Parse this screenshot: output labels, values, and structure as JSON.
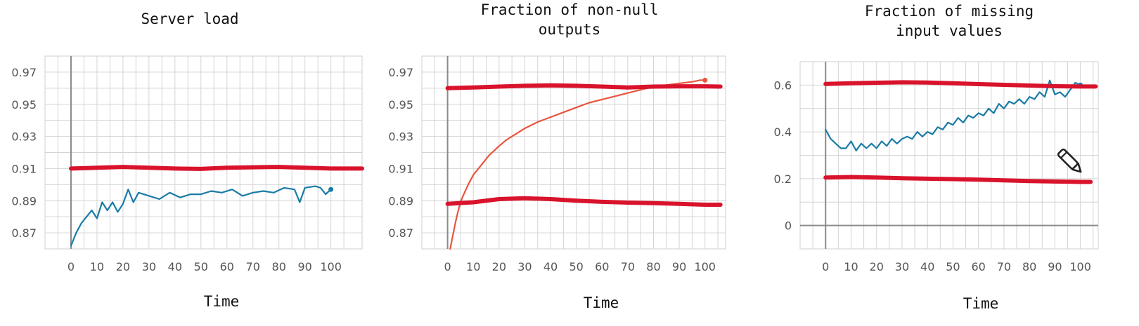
{
  "chart_data": [
    {
      "type": "line",
      "title_lines": [
        "Server load"
      ],
      "xlabel": "Time",
      "ylabel": "",
      "xlim": [
        -10,
        112
      ],
      "ylim": [
        0.86,
        0.98
      ],
      "xticks": [
        0,
        10,
        20,
        30,
        40,
        50,
        60,
        70,
        80,
        90,
        100
      ],
      "yticks": [
        0.87,
        0.89,
        0.91,
        0.93,
        0.95,
        0.97
      ],
      "ytick_labels": [
        "0.87",
        "0.89",
        "0.91",
        "0.93",
        "0.95",
        "0.97"
      ],
      "zero_line": false,
      "series": [
        {
          "color": "#1a7ba6",
          "style": "thin",
          "x": [
            0,
            2,
            4,
            6,
            8,
            10,
            12,
            14,
            16,
            18,
            20,
            22,
            24,
            26,
            28,
            30,
            34,
            38,
            42,
            46,
            50,
            54,
            58,
            62,
            66,
            70,
            74,
            78,
            82,
            86,
            88,
            90,
            94,
            96,
            98,
            100
          ],
          "y": [
            0.862,
            0.87,
            0.876,
            0.88,
            0.884,
            0.879,
            0.889,
            0.884,
            0.889,
            0.883,
            0.888,
            0.897,
            0.889,
            0.895,
            0.894,
            0.893,
            0.891,
            0.895,
            0.892,
            0.894,
            0.894,
            0.896,
            0.895,
            0.897,
            0.893,
            0.895,
            0.896,
            0.895,
            0.898,
            0.897,
            0.889,
            0.898,
            0.899,
            0.898,
            0.894,
            0.897
          ]
        },
        {
          "color": "#d9132c",
          "style": "thick",
          "x": [
            0,
            10,
            20,
            30,
            40,
            50,
            60,
            70,
            80,
            90,
            100,
            112
          ],
          "y": [
            0.91,
            0.9105,
            0.911,
            0.9105,
            0.91,
            0.9098,
            0.9105,
            0.9108,
            0.911,
            0.9105,
            0.91,
            0.91
          ]
        }
      ]
    },
    {
      "type": "line",
      "title_lines": [
        "Fraction of non-null",
        "outputs"
      ],
      "xlabel": "Time",
      "ylabel": "",
      "xlim": [
        -10,
        108
      ],
      "ylim": [
        0.86,
        0.98
      ],
      "xticks": [
        0,
        10,
        20,
        30,
        40,
        50,
        60,
        70,
        80,
        90,
        100
      ],
      "yticks": [
        0.87,
        0.89,
        0.91,
        0.93,
        0.95,
        0.97
      ],
      "ytick_labels": [
        "0.87",
        "0.89",
        "0.91",
        "0.93",
        "0.95",
        "0.97"
      ],
      "zero_line": false,
      "series": [
        {
          "color": "#e8553e",
          "style": "thin",
          "x": [
            1,
            2,
            3,
            4,
            5,
            6,
            8,
            10,
            12,
            14,
            16,
            18,
            20,
            23,
            26,
            30,
            35,
            40,
            45,
            50,
            55,
            60,
            65,
            70,
            75,
            80,
            85,
            90,
            95,
            98,
            100
          ],
          "y": [
            0.86,
            0.868,
            0.876,
            0.883,
            0.889,
            0.893,
            0.9,
            0.906,
            0.91,
            0.914,
            0.918,
            0.921,
            0.924,
            0.928,
            0.931,
            0.935,
            0.939,
            0.942,
            0.945,
            0.948,
            0.951,
            0.953,
            0.955,
            0.957,
            0.959,
            0.961,
            0.962,
            0.963,
            0.964,
            0.965,
            0.965
          ]
        },
        {
          "color": "#d9132c",
          "style": "thick",
          "x": [
            0,
            10,
            20,
            30,
            40,
            50,
            60,
            70,
            80,
            90,
            100,
            106
          ],
          "y": [
            0.96,
            0.9605,
            0.961,
            0.9615,
            0.9618,
            0.9615,
            0.961,
            0.9605,
            0.961,
            0.9612,
            0.9612,
            0.961
          ]
        },
        {
          "color": "#d9132c",
          "style": "thick",
          "x": [
            0,
            10,
            20,
            30,
            40,
            50,
            60,
            70,
            80,
            90,
            100,
            106
          ],
          "y": [
            0.888,
            0.889,
            0.891,
            0.8915,
            0.891,
            0.89,
            0.8893,
            0.8888,
            0.8885,
            0.888,
            0.8875,
            0.8875
          ]
        }
      ]
    },
    {
      "type": "line",
      "title_lines": [
        "Fraction of missing",
        "input values"
      ],
      "xlabel": "Time",
      "ylabel": "",
      "xlim": [
        -10,
        107
      ],
      "ylim": [
        -0.1,
        0.7
      ],
      "xticks": [
        0,
        10,
        20,
        30,
        40,
        50,
        60,
        70,
        80,
        90,
        100
      ],
      "yticks": [
        0,
        0.2,
        0.4,
        0.6
      ],
      "ytick_labels": [
        "0",
        "0.2",
        "0.4",
        "0.6"
      ],
      "zero_line": true,
      "series": [
        {
          "color": "#1a7ba6",
          "style": "thin",
          "x": [
            0,
            2,
            4,
            6,
            8,
            10,
            12,
            14,
            16,
            18,
            20,
            22,
            24,
            26,
            28,
            30,
            32,
            34,
            36,
            38,
            40,
            42,
            44,
            46,
            48,
            50,
            52,
            54,
            56,
            58,
            60,
            62,
            64,
            66,
            68,
            70,
            72,
            74,
            76,
            78,
            80,
            82,
            84,
            86,
            88,
            90,
            92,
            94,
            96,
            98,
            100
          ],
          "y": [
            0.41,
            0.37,
            0.35,
            0.33,
            0.33,
            0.36,
            0.32,
            0.35,
            0.33,
            0.35,
            0.33,
            0.36,
            0.34,
            0.37,
            0.35,
            0.37,
            0.38,
            0.37,
            0.4,
            0.38,
            0.4,
            0.39,
            0.42,
            0.41,
            0.44,
            0.43,
            0.46,
            0.44,
            0.47,
            0.46,
            0.48,
            0.47,
            0.5,
            0.48,
            0.52,
            0.5,
            0.53,
            0.52,
            0.54,
            0.52,
            0.55,
            0.54,
            0.57,
            0.55,
            0.62,
            0.56,
            0.57,
            0.55,
            0.58,
            0.61,
            0.6
          ]
        },
        {
          "color": "#d9132c",
          "style": "thick",
          "x": [
            0,
            10,
            20,
            30,
            40,
            50,
            60,
            70,
            80,
            90,
            100,
            106
          ],
          "y": [
            0.605,
            0.608,
            0.61,
            0.612,
            0.611,
            0.608,
            0.604,
            0.601,
            0.598,
            0.595,
            0.594,
            0.594
          ]
        },
        {
          "color": "#d9132c",
          "style": "thick",
          "x": [
            0,
            10,
            20,
            30,
            40,
            50,
            60,
            70,
            80,
            90,
            100,
            104
          ],
          "y": [
            0.205,
            0.207,
            0.205,
            0.202,
            0.2,
            0.198,
            0.196,
            0.193,
            0.19,
            0.188,
            0.186,
            0.186
          ]
        }
      ]
    }
  ],
  "icons": {
    "pencil": "pencil-icon"
  }
}
